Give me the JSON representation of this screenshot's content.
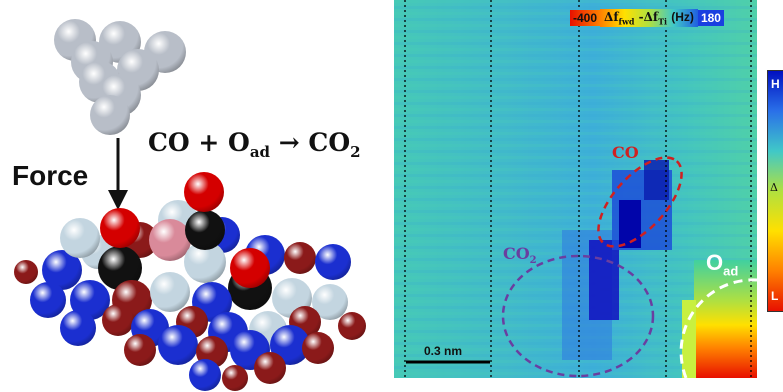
{
  "left_panel": {
    "reaction": {
      "reactant1": "CO + O",
      "reactant1_sub": "ad",
      "arrow": "→",
      "product": "CO",
      "product_sub": "2"
    },
    "force_label": "Force"
  },
  "map_panel": {
    "colorbar_top": {
      "min": "-400",
      "quantity": "Δf",
      "sub1": "fwd",
      "minus": "-Δf",
      "sub2": "Ti",
      "unit": "(Hz)",
      "max": "180"
    },
    "labels": {
      "co": "CO",
      "co2": "CO",
      "co2_sub": "2",
      "oad": "O",
      "oad_sub": "ad"
    },
    "scalebar": "0.3 nm",
    "side_colorbar": {
      "high": "H",
      "mid": "Δ",
      "low": "L"
    }
  },
  "colors": {
    "ball_gray": "#b8bec8",
    "ball_blue": "#1b2fd0",
    "ball_darkred": "#8b1a1a",
    "ball_lightblue": "#c3d5e0",
    "ball_black": "#111111",
    "ball_red": "#d40000",
    "ball_pink": "#d98a9a",
    "co_label": "#d02020",
    "co2_label": "#6a3ea0",
    "oad_label": "#ffffff"
  }
}
